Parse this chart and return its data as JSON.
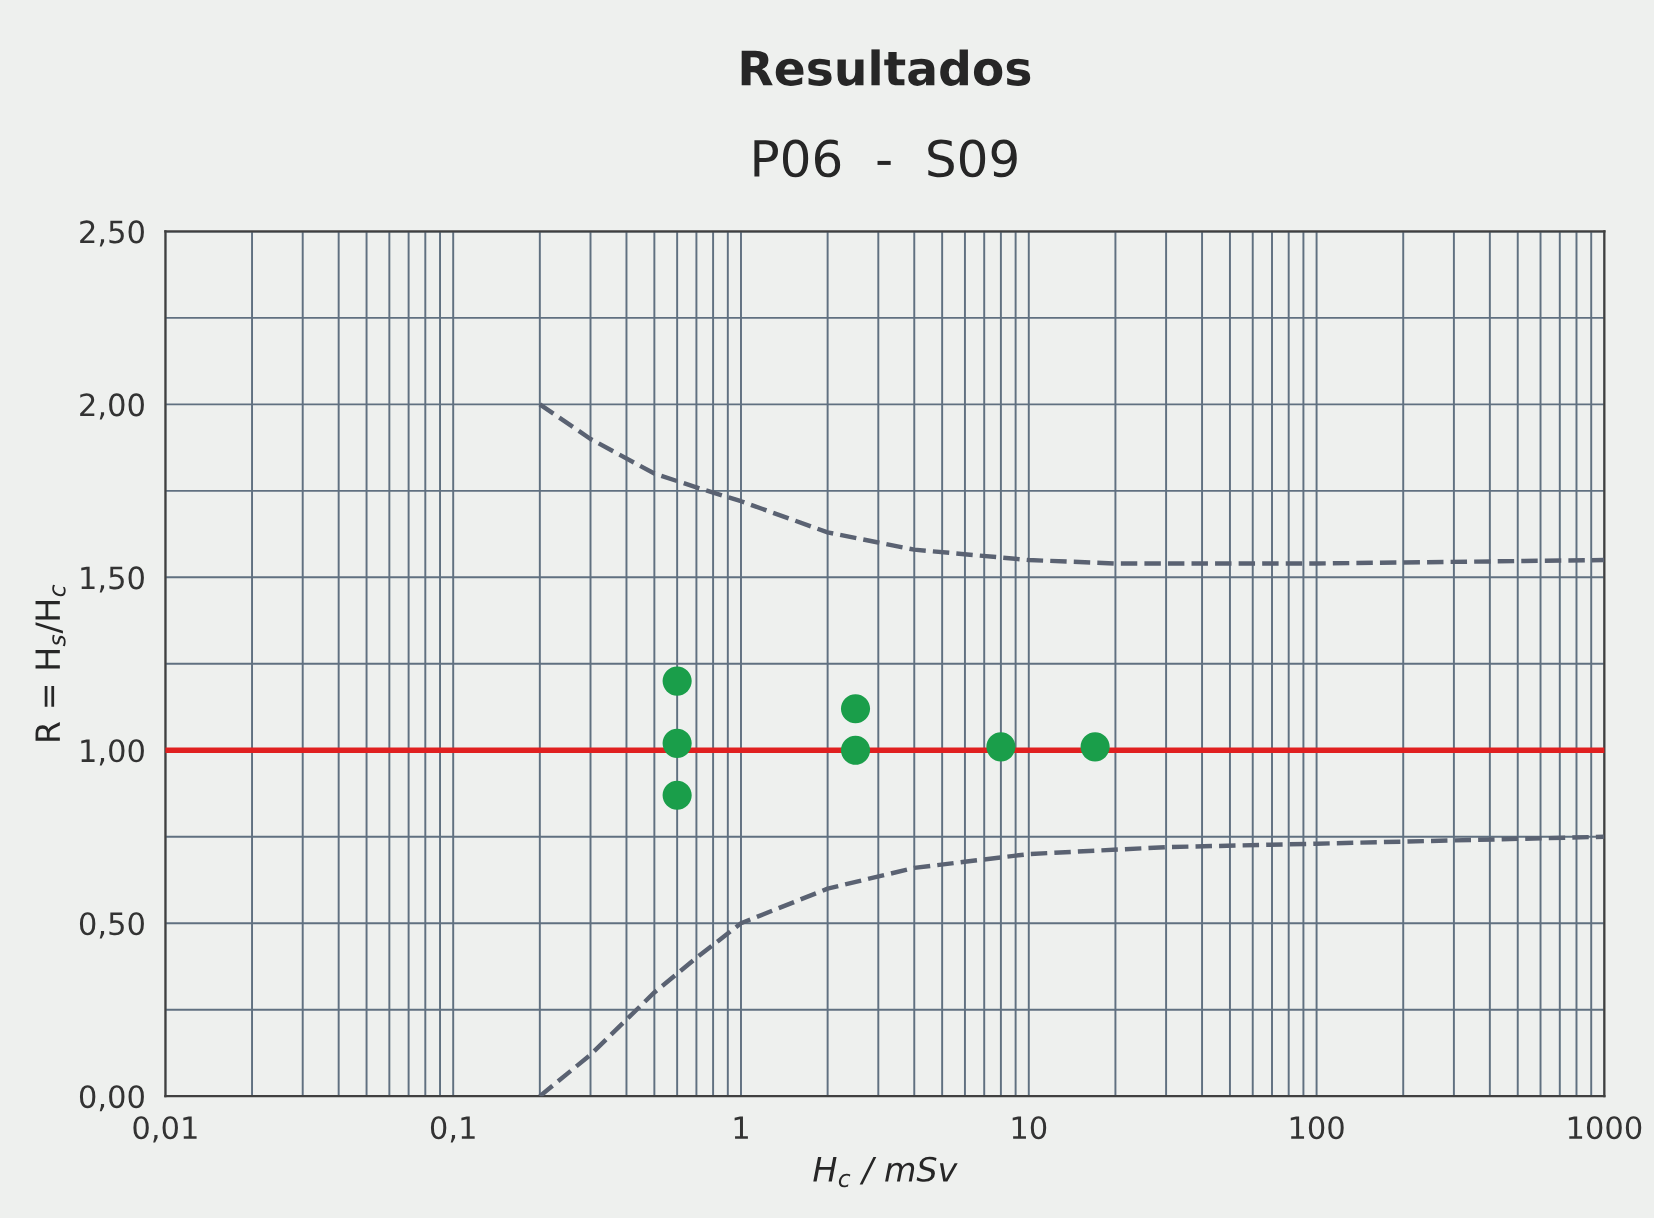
{
  "chart_data": {
    "type": "scatter",
    "title": "Resultados",
    "subtitle": "P06  -  S09",
    "xlabel": "H$_{c}$ / mSv",
    "ylabel": "R = H$_{s}$/H$_{c}$",
    "log": "x",
    "grid": true,
    "marker": "circle",
    "xlim": [
      0.01,
      1000
    ],
    "ylim": [
      0,
      2.5
    ],
    "xticks": [
      {
        "value": 0.01,
        "label": "0,01"
      },
      {
        "value": 0.1,
        "label": "0,1"
      },
      1,
      10,
      100,
      1000
    ],
    "yticks": [
      {
        "value": 0,
        "label": "0,00"
      },
      {
        "value": 0.5,
        "label": "0,50"
      },
      {
        "value": 1,
        "label": "1,00"
      },
      {
        "value": 1.5,
        "label": "1,50"
      },
      {
        "value": 2,
        "label": "2,00"
      },
      {
        "value": 2.5,
        "label": "2,50"
      }
    ],
    "series": [
      {
        "color": "#1a9e4a",
        "x": [
          0.6,
          0.6,
          0.6,
          2.5,
          2.5,
          8,
          17
        ],
        "values": [
          1.2,
          1.02,
          0.87,
          1.12,
          1.0,
          1.01,
          1.01
        ]
      },
      {
        "type": "line",
        "line_style": "dashed",
        "marker": "none",
        "color": "#5a6272",
        "x": [
          0.2,
          0.3,
          0.5,
          0.7,
          1,
          2,
          4,
          10,
          20,
          100,
          1000
        ],
        "values": [
          2.0,
          1.9,
          1.8,
          1.76,
          1.72,
          1.63,
          1.58,
          1.55,
          1.54,
          1.54,
          1.55
        ]
      },
      {
        "type": "line",
        "line_style": "dashed",
        "marker": "none",
        "color": "#5a6272",
        "x": [
          0.2,
          0.3,
          0.5,
          0.7,
          1,
          2,
          4,
          10,
          30,
          100,
          1000
        ],
        "values": [
          0.0,
          0.12,
          0.3,
          0.4,
          0.5,
          0.6,
          0.66,
          0.7,
          0.72,
          0.73,
          0.75
        ]
      }
    ],
    "ref_lines": [
      {
        "axis": "y",
        "value": 1.0,
        "color": "#e02020",
        "line_style": "solid"
      }
    ]
  }
}
